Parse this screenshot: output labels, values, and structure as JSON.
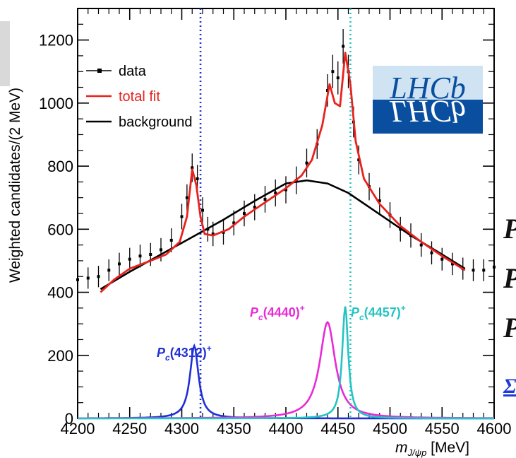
{
  "chart_data": {
    "type": "line",
    "ylabel": "Weighted candidates/(2 MeV)",
    "xlabel_main": "m",
    "xlabel_sub": "J/ψp",
    "xlabel_unit": "[MeV]",
    "xlim": [
      4200,
      4600
    ],
    "ylim": [
      0,
      1300
    ],
    "xticks": [
      4200,
      4250,
      4300,
      4350,
      4400,
      4450,
      4500,
      4550,
      4600
    ],
    "yticks": [
      0,
      200,
      400,
      600,
      800,
      1000,
      1200
    ],
    "legend_position": "top-left",
    "legend": [
      {
        "label": "data",
        "color": "#000000",
        "kind": "marker"
      },
      {
        "label": "total fit",
        "color": "#e8221c",
        "kind": "line"
      },
      {
        "label": "background",
        "color": "#000000",
        "kind": "line"
      }
    ],
    "data_points": [
      [
        4200,
        440
      ],
      [
        4210,
        445
      ],
      [
        4220,
        450
      ],
      [
        4230,
        470
      ],
      [
        4240,
        490
      ],
      [
        4250,
        505
      ],
      [
        4260,
        515
      ],
      [
        4270,
        520
      ],
      [
        4280,
        535
      ],
      [
        4290,
        565
      ],
      [
        4300,
        640
      ],
      [
        4305,
        700
      ],
      [
        4310,
        795
      ],
      [
        4315,
        760
      ],
      [
        4320,
        660
      ],
      [
        4325,
        600
      ],
      [
        4330,
        585
      ],
      [
        4340,
        590
      ],
      [
        4350,
        620
      ],
      [
        4360,
        650
      ],
      [
        4370,
        670
      ],
      [
        4380,
        695
      ],
      [
        4390,
        715
      ],
      [
        4400,
        725
      ],
      [
        4410,
        755
      ],
      [
        4420,
        810
      ],
      [
        4430,
        870
      ],
      [
        4440,
        1040
      ],
      [
        4445,
        1100
      ],
      [
        4450,
        1080
      ],
      [
        4455,
        1180
      ],
      [
        4460,
        1100
      ],
      [
        4465,
        940
      ],
      [
        4470,
        820
      ],
      [
        4480,
        735
      ],
      [
        4490,
        690
      ],
      [
        4500,
        645
      ],
      [
        4510,
        600
      ],
      [
        4520,
        580
      ],
      [
        4530,
        550
      ],
      [
        4540,
        525
      ],
      [
        4550,
        505
      ],
      [
        4560,
        490
      ],
      [
        4570,
        475
      ],
      [
        4580,
        470
      ],
      [
        4590,
        470
      ],
      [
        4600,
        480
      ]
    ],
    "total_fit": [
      [
        4222,
        400
      ],
      [
        4235,
        440
      ],
      [
        4250,
        475
      ],
      [
        4270,
        500
      ],
      [
        4285,
        520
      ],
      [
        4298,
        560
      ],
      [
        4305,
        640
      ],
      [
        4310,
        790
      ],
      [
        4314,
        740
      ],
      [
        4318,
        640
      ],
      [
        4322,
        585
      ],
      [
        4330,
        580
      ],
      [
        4345,
        600
      ],
      [
        4360,
        640
      ],
      [
        4380,
        685
      ],
      [
        4400,
        730
      ],
      [
        4415,
        770
      ],
      [
        4425,
        820
      ],
      [
        4435,
        930
      ],
      [
        4442,
        1060
      ],
      [
        4447,
        1000
      ],
      [
        4452,
        990
      ],
      [
        4457,
        1160
      ],
      [
        4462,
        1060
      ],
      [
        4467,
        880
      ],
      [
        4475,
        760
      ],
      [
        4490,
        680
      ],
      [
        4510,
        610
      ],
      [
        4530,
        560
      ],
      [
        4550,
        515
      ],
      [
        4572,
        470
      ]
    ],
    "background_fit": [
      [
        4222,
        410
      ],
      [
        4250,
        465
      ],
      [
        4280,
        520
      ],
      [
        4310,
        575
      ],
      [
        4340,
        630
      ],
      [
        4370,
        690
      ],
      [
        4400,
        745
      ],
      [
        4420,
        755
      ],
      [
        4440,
        745
      ],
      [
        4460,
        715
      ],
      [
        4480,
        670
      ],
      [
        4500,
        625
      ],
      [
        4520,
        580
      ],
      [
        4545,
        530
      ],
      [
        4572,
        475
      ]
    ],
    "series": [
      {
        "name": "P_c(4312)^+",
        "label_main": "P",
        "label_sub": "c",
        "label_mass": "(4312)",
        "label_sup": "+",
        "color": "#1f2fd6",
        "peak_x": 4312,
        "peak_y": 230,
        "width": 5
      },
      {
        "name": "P_c(4440)^+",
        "label_main": "P",
        "label_sub": "c",
        "label_mass": "(4440)",
        "label_sup": "+",
        "color": "#e82ad8",
        "peak_x": 4440,
        "peak_y": 305,
        "width": 9
      },
      {
        "name": "P_c(4457)^+",
        "label_main": "P",
        "label_sub": "c",
        "label_mass": "(4457)",
        "label_sup": "+",
        "color": "#23c4c2",
        "peak_x": 4457,
        "peak_y": 355,
        "width": 3.5
      }
    ],
    "vertical_lines": [
      {
        "x": 4318,
        "color": "#1f2fd6"
      },
      {
        "x": 4462,
        "color": "#23c4c2"
      }
    ]
  },
  "logo": {
    "text": "LHCb",
    "bg_top": "#cfe3f3",
    "bg_bottom": "#0a4f9f"
  },
  "side_text": {
    "letters": [
      "P",
      "P",
      "P"
    ],
    "sigma": "Σ"
  }
}
